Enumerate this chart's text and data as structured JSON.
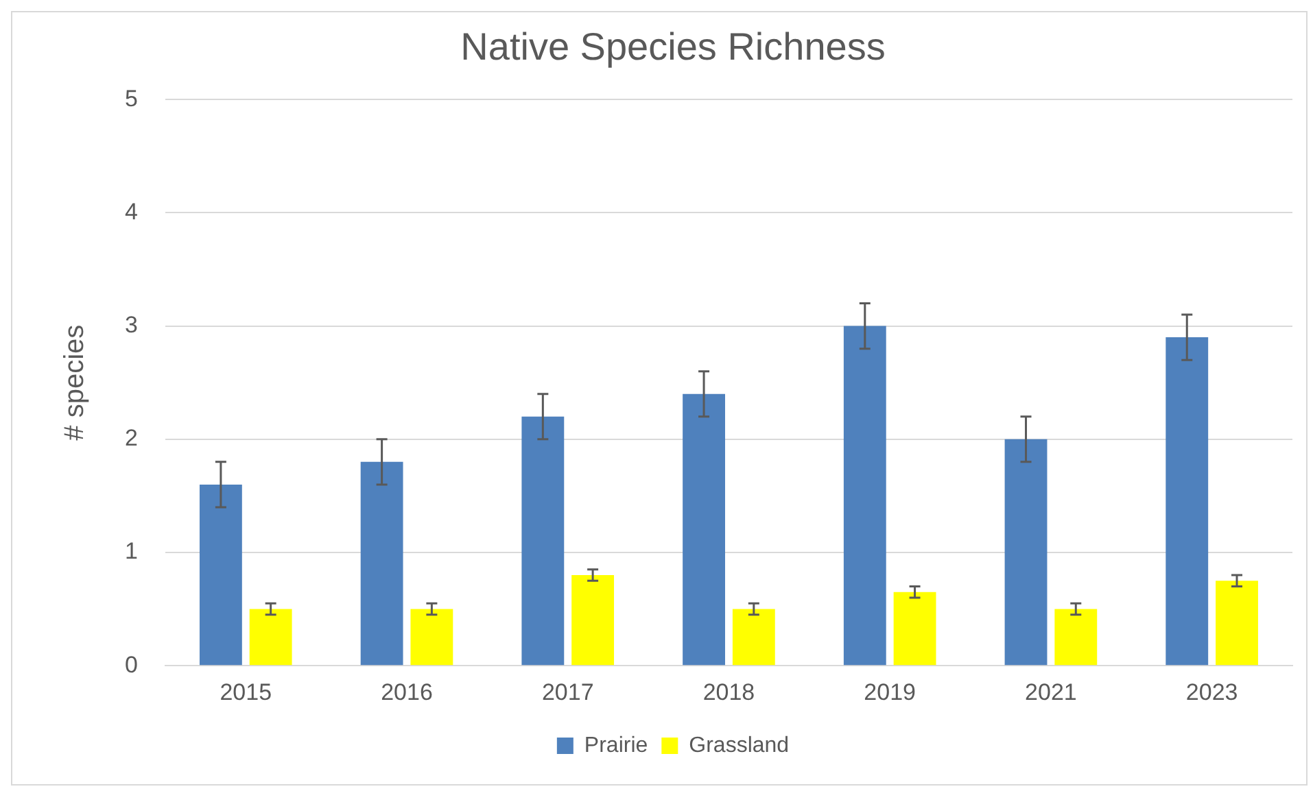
{
  "chart_data": {
    "type": "bar",
    "title": "Native Species Richness",
    "ylabel": "# species",
    "categories": [
      "2015",
      "2016",
      "2017",
      "2018",
      "2019",
      "2021",
      "2023"
    ],
    "series": [
      {
        "name": "Prairie",
        "color": "#4f81bd",
        "values": [
          1.6,
          1.8,
          2.2,
          2.4,
          3.0,
          2.0,
          2.9
        ],
        "errors": [
          0.2,
          0.2,
          0.2,
          0.2,
          0.2,
          0.2,
          0.2
        ]
      },
      {
        "name": "Grassland",
        "color": "#ffff00",
        "values": [
          0.5,
          0.5,
          0.8,
          0.5,
          0.65,
          0.5,
          0.75
        ],
        "errors": [
          0.05,
          0.05,
          0.05,
          0.05,
          0.05,
          0.05,
          0.05
        ]
      }
    ],
    "ylim": [
      0,
      5
    ],
    "yticks": [
      0,
      1,
      2,
      3,
      4,
      5
    ],
    "grid": "y",
    "legend": "bottom"
  }
}
